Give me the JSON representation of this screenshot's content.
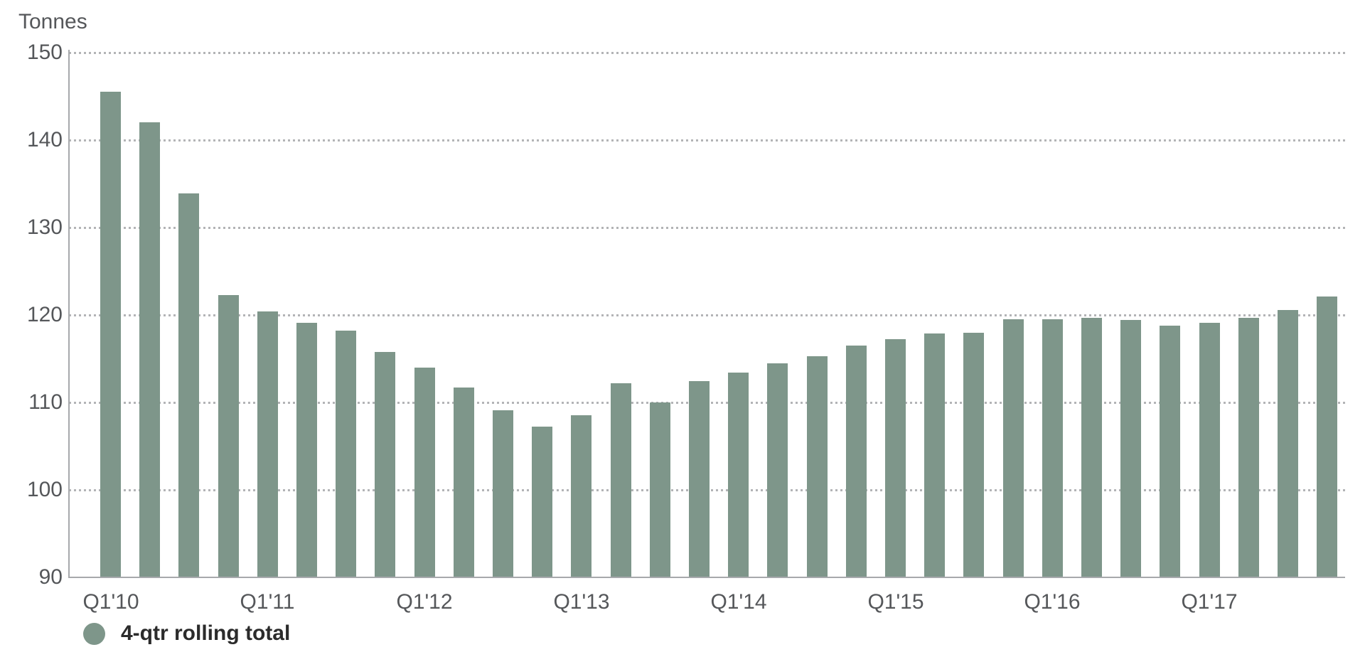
{
  "chart_data": {
    "type": "bar",
    "title": "",
    "ylabel": "Tonnes",
    "xlabel": "",
    "categories": [
      "Q1'10",
      "Q2'10",
      "Q3'10",
      "Q4'10",
      "Q1'11",
      "Q2'11",
      "Q3'11",
      "Q4'11",
      "Q1'12",
      "Q2'12",
      "Q3'12",
      "Q4'12",
      "Q1'13",
      "Q2'13",
      "Q3'13",
      "Q4'13",
      "Q1'14",
      "Q2'14",
      "Q3'14",
      "Q4'14",
      "Q1'15",
      "Q2'15",
      "Q3'15",
      "Q4'15",
      "Q1'16",
      "Q2'16",
      "Q3'16",
      "Q4'16",
      "Q1'17",
      "Q2'17",
      "Q3'17",
      "Q4'17"
    ],
    "series": [
      {
        "name": "4-qtr rolling total",
        "values": [
          145.5,
          142.0,
          133.9,
          122.3,
          120.4,
          119.1,
          118.2,
          115.8,
          114.0,
          111.7,
          109.1,
          107.2,
          108.5,
          112.2,
          110.0,
          112.4,
          113.4,
          114.5,
          115.3,
          116.5,
          117.2,
          117.9,
          118.0,
          119.5,
          119.5,
          119.7,
          119.4,
          118.8,
          119.1,
          119.7,
          120.6,
          122.1
        ]
      }
    ],
    "ylim": [
      90,
      150
    ],
    "yticks": [
      150,
      140,
      130,
      120,
      110,
      100,
      90
    ],
    "x_tick_labels": [
      "Q1'10",
      "Q1'11",
      "Q1'12",
      "Q1'13",
      "Q1'14",
      "Q1'15",
      "Q1'16",
      "Q1'17"
    ],
    "x_tick_every": 4,
    "grid": "horizontal-dotted",
    "legend_position": "bottom-left",
    "bar_color": "#7E968A"
  },
  "legend": {
    "marker": "circle",
    "label": "4-qtr rolling total"
  }
}
